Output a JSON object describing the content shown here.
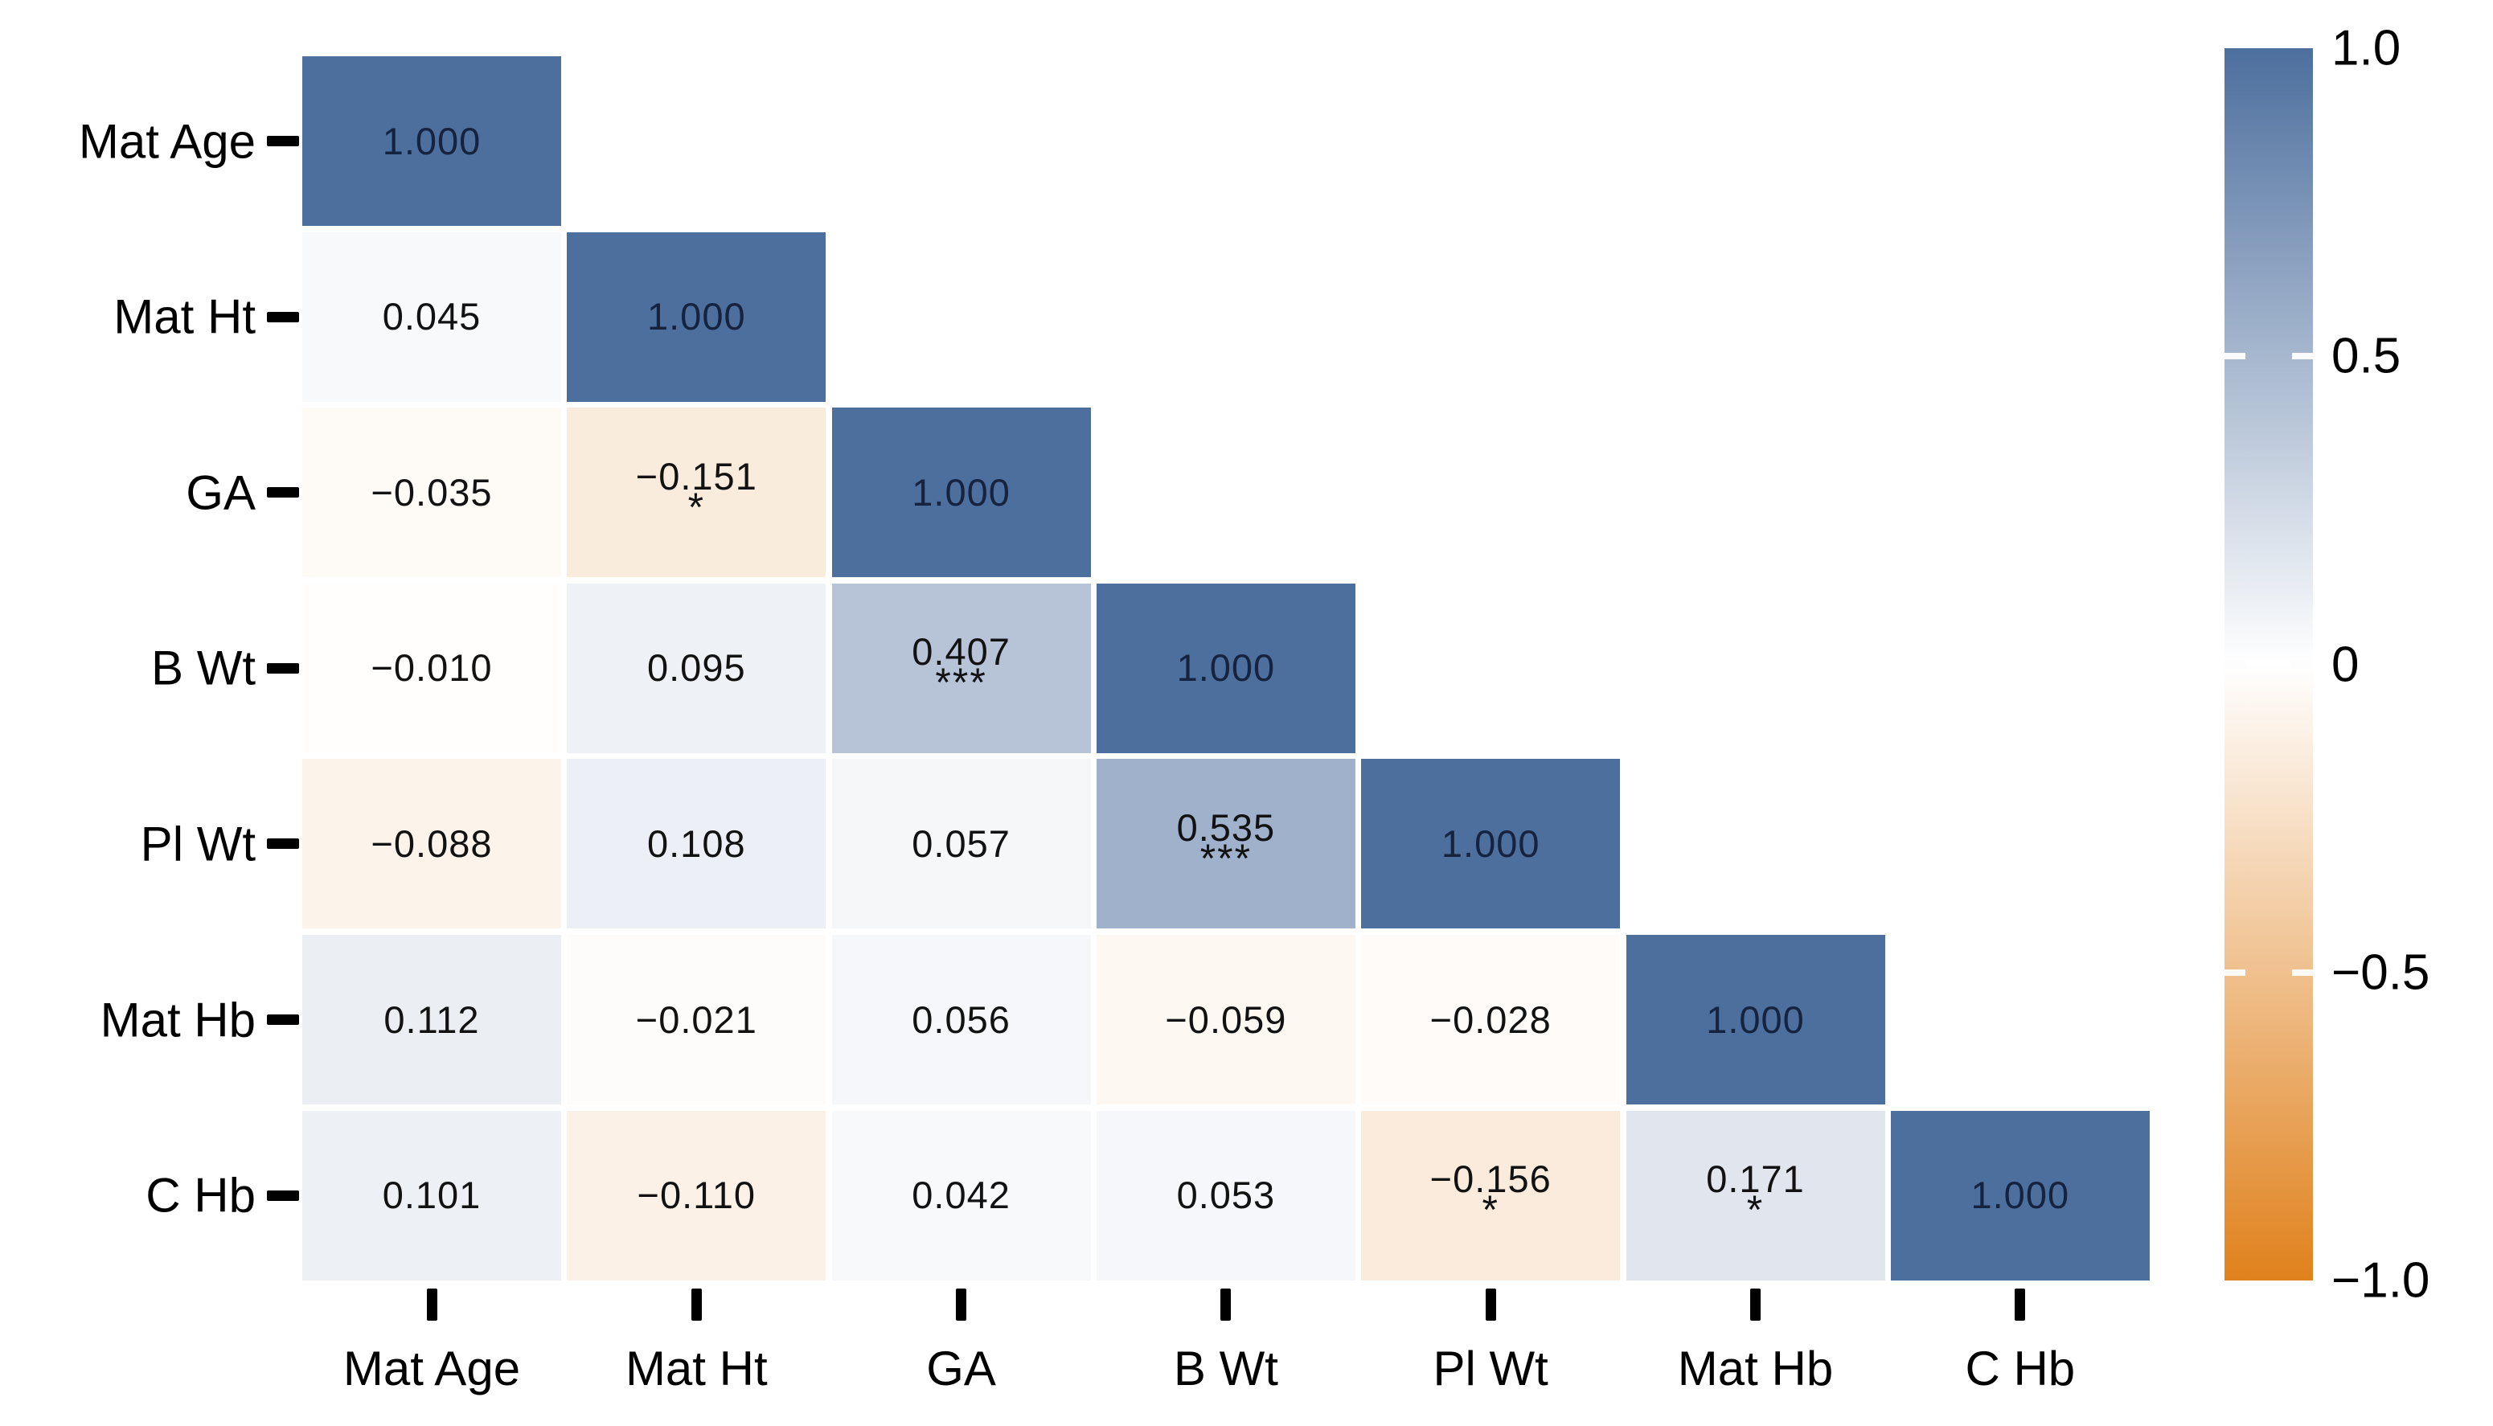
{
  "chart_data": {
    "type": "heatmap",
    "title": "",
    "description": "Lower-triangular correlation matrix heatmap with significance stars",
    "categories": [
      "Mat Age",
      "Mat Ht",
      "GA",
      "B Wt",
      "Pl Wt",
      "Mat Hb",
      "C Hb"
    ],
    "x_axis_labels": [
      "Mat Age",
      "Mat Ht",
      "GA",
      "B Wt",
      "Pl Wt",
      "Mat Hb",
      "C Hb"
    ],
    "y_axis_labels": [
      "Mat Age",
      "Mat Ht",
      "GA",
      "B Wt",
      "Pl Wt",
      "Mat Hb",
      "C Hb"
    ],
    "matrix_lower_triangle": [
      [
        1.0
      ],
      [
        0.045,
        1.0
      ],
      [
        -0.035,
        -0.151,
        1.0
      ],
      [
        -0.01,
        0.095,
        0.407,
        1.0
      ],
      [
        -0.088,
        0.108,
        0.057,
        0.535,
        1.0
      ],
      [
        0.112,
        -0.021,
        0.056,
        -0.059,
        -0.028,
        1.0
      ],
      [
        0.101,
        -0.11,
        0.042,
        0.053,
        -0.156,
        0.171,
        1.0
      ]
    ],
    "stars_lower_triangle": [
      [
        ""
      ],
      [
        "",
        ""
      ],
      [
        "",
        "*",
        ""
      ],
      [
        "",
        "",
        "***",
        ""
      ],
      [
        "",
        "",
        "",
        "***",
        ""
      ],
      [
        "",
        "",
        "",
        "",
        "",
        ""
      ],
      [
        "",
        "",
        "",
        "",
        "*",
        "*",
        ""
      ]
    ],
    "value_decimals": 3,
    "colorbar": {
      "tick_labels": [
        "1.0",
        "0.5",
        "0",
        "−0.5",
        "−1.0"
      ],
      "tick_values": [
        1.0,
        0.5,
        0,
        -0.5,
        -1.0
      ],
      "min": -1.0,
      "max": 1.0,
      "color_max": "#4d6f9e",
      "color_zero": "#ffffff",
      "color_min": "#e0811c"
    },
    "colors": {
      "diagonal_text": "#16233f",
      "cell_text": "#121212",
      "axis_text": "#000000",
      "tick_color": "#000000"
    },
    "layout_hints": {
      "legend_position": "right",
      "grid": false,
      "triangle": "lower",
      "value_range": [
        -1,
        1
      ]
    }
  }
}
